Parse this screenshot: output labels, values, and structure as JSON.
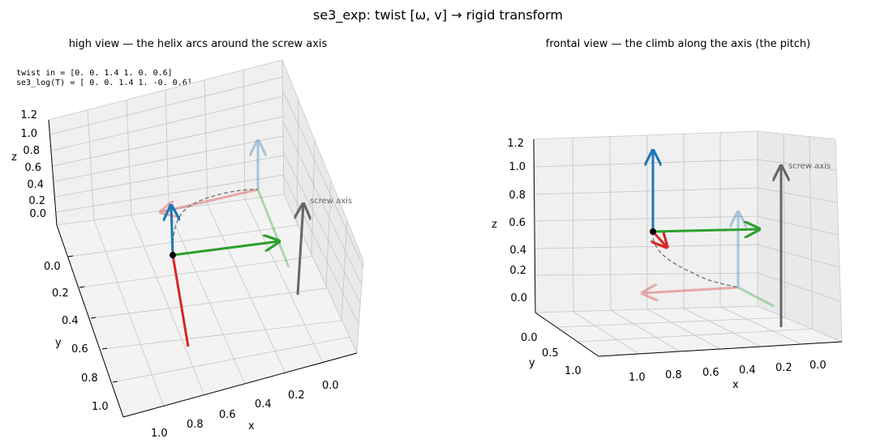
{
  "figure": {
    "suptitle": "se3_exp: twist [ω, v] → rigid transform"
  },
  "text_box": {
    "line1": "twist in  = [0.  0.  1.4 1.  0.  0.6]",
    "line2": "se3_log(T) = [ 0.   0.   1.4  1.  -0.   0.6]"
  },
  "chart_data": [
    {
      "type": "line",
      "title": "high view — the helix arcs around the screw axis",
      "xlabel": "x",
      "ylabel": "y",
      "zlabel": "z",
      "xlim": [
        -0.1,
        1.1
      ],
      "ylim": [
        -0.1,
        1.1
      ],
      "zlim": [
        0,
        1.2
      ],
      "x_ticks": [
        "1.0",
        "0.8",
        "0.6",
        "0.4",
        "0.2",
        "0.0"
      ],
      "y_ticks": [
        "0.0",
        "0.2",
        "0.4",
        "0.6",
        "0.8",
        "1.0"
      ],
      "z_ticks": [
        "0.0",
        "0.2",
        "0.4",
        "0.6",
        "0.8",
        "1.0",
        "1.2"
      ],
      "annotation": "screw axis",
      "grid": true
    },
    {
      "type": "line",
      "title": "frontal view — the climb along the axis (the pitch)",
      "xlabel": "x",
      "ylabel": "y",
      "zlabel": "z",
      "xlim": [
        -0.1,
        1.1
      ],
      "ylim": [
        -0.1,
        1.1
      ],
      "zlim": [
        0,
        1.2
      ],
      "x_ticks": [
        "1.0",
        "0.8",
        "0.6",
        "0.4",
        "0.2",
        "0.0"
      ],
      "y_ticks": [
        "0.0",
        "0.5",
        "1.0"
      ],
      "z_ticks": [
        "0.0",
        "0.2",
        "0.4",
        "0.6",
        "0.8",
        "1.0",
        "1.2"
      ],
      "annotation": "screw axis",
      "grid": true
    }
  ],
  "colors": {
    "x_axis": "#d62728",
    "y_axis": "#2ca02c",
    "z_axis": "#1f77b4",
    "screw_axis": "#666666",
    "helix": "#777777",
    "origin_dot": "#000000"
  }
}
